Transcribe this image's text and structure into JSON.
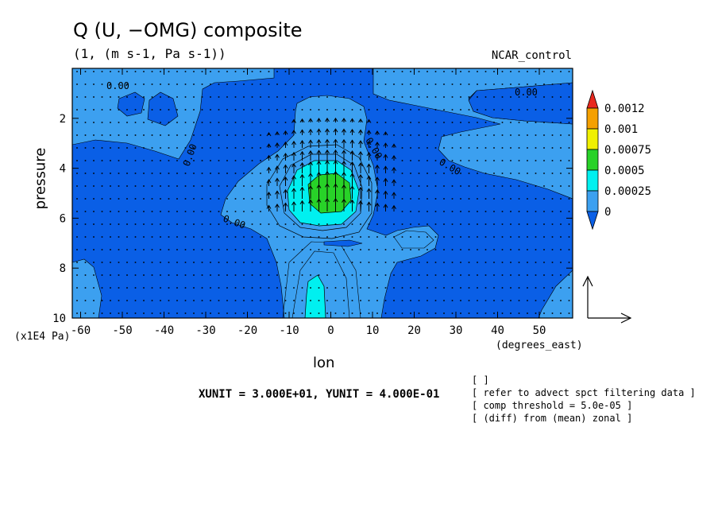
{
  "chart_data": {
    "type": "heatmap",
    "title": "Q (U, −OMG) composite",
    "subtitle": "(1, (m s-1, Pa s-1))",
    "dataset": "NCAR_control",
    "xlabel": "lon",
    "xlabel_units": "(degrees_east)",
    "ylabel": "pressure",
    "ylabel_units": "(x1E4 Pa)",
    "xlim": [
      -62,
      58
    ],
    "ylim": [
      0,
      10
    ],
    "y_inverted": true,
    "x_ticks": [
      "-60",
      "-50",
      "-40",
      "-30",
      "-20",
      "-10",
      "0",
      "10",
      "20",
      "30",
      "40",
      "50"
    ],
    "y_ticks": [
      "2",
      "4",
      "6",
      "8",
      "10"
    ],
    "colorbar": {
      "levels": [
        "0.0012",
        "0.001",
        "0.00075",
        "0.0005",
        "0.00025",
        "0"
      ],
      "colors": [
        "#e8281e",
        "#f5a000",
        "#f0f000",
        "#28d228",
        "#00f0f0",
        "#3ca0f0",
        "#0a5fe6"
      ]
    },
    "contour_labels": [
      "0.00",
      "0.00",
      "0.00",
      "0.00",
      "0.00",
      "0.00"
    ],
    "vector_units": "XUNIT = 3.000E+01, YUNIT = 4.000E-01",
    "notes": [
      "[  ]",
      "[ refer to advect spct filtering data ]",
      "[ comp threshold = 5.0e-05 ]",
      "[ (diff) from (mean) zonal ]"
    ]
  }
}
